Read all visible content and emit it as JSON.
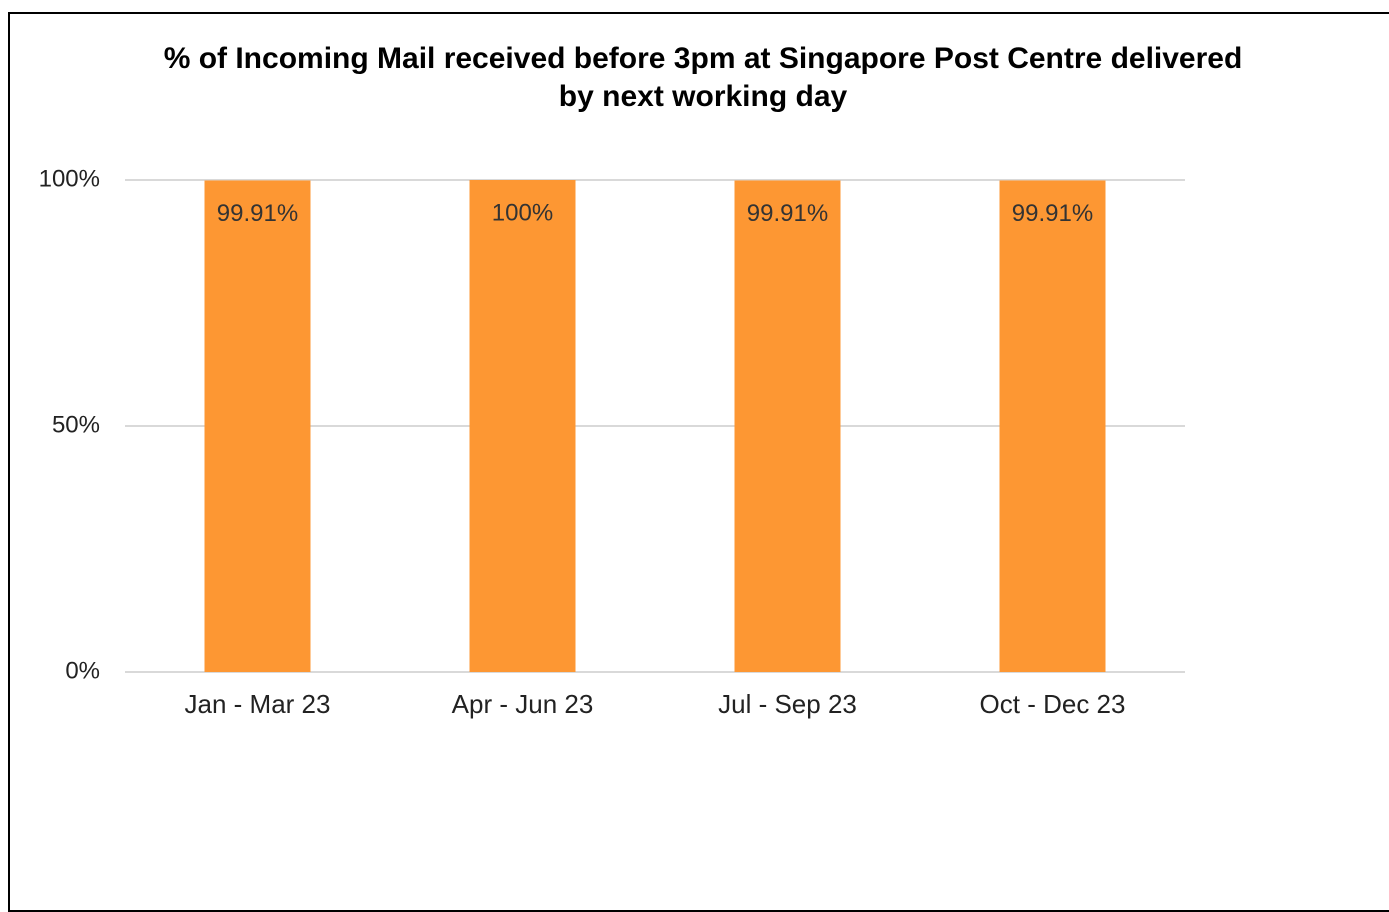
{
  "chart_data": {
    "type": "bar",
    "title": "% of Incoming Mail received before 3pm at Singapore Post Centre delivered by next working day",
    "categories": [
      "Jan - Mar 23",
      "Apr - Jun 23",
      "Jul - Sep 23",
      "Oct - Dec 23"
    ],
    "values": [
      99.91,
      100,
      99.91,
      99.91
    ],
    "value_labels": [
      "99.91%",
      "100%",
      "99.91%",
      "99.91%"
    ],
    "color": "#fd9733",
    "ylim": [
      0,
      100
    ],
    "yticks": [
      {
        "value": 0,
        "label": "0%"
      },
      {
        "value": 50,
        "label": "50%"
      },
      {
        "value": 100,
        "label": "100%"
      }
    ],
    "grid": true
  }
}
